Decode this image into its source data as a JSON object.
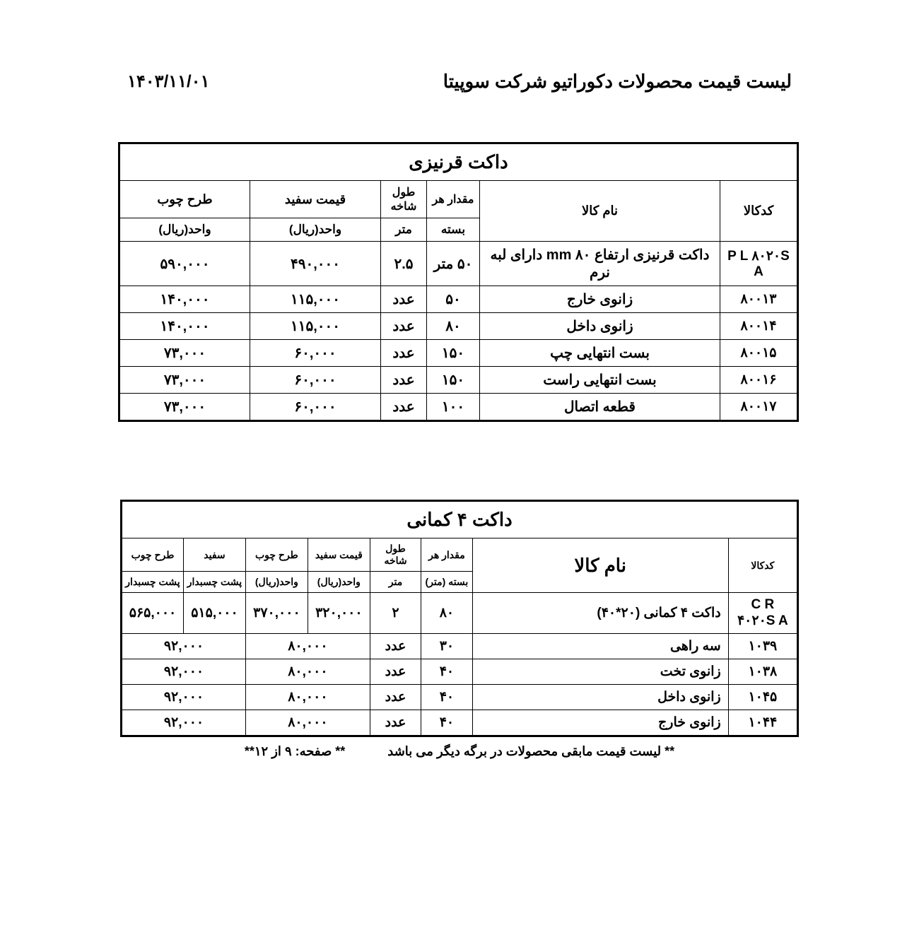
{
  "header": {
    "title": "لیست قیمت محصولات دکوراتیو شرکت سوپیتا",
    "date": "۱۴۰۳/۱۱/۰۱"
  },
  "table1": {
    "category": "داکت قرنیزی",
    "headers": {
      "code": "کدکالا",
      "name": "نام کالا",
      "qty": "مقدار هر",
      "len": "طول شاخه",
      "white": "قیمت  سفید",
      "wood": "طرح چوب",
      "unit_pack": "بسته",
      "unit_m": "متر",
      "unit_rial1": "واحد(ریال)",
      "unit_rial2": "واحد(ریال)"
    },
    "rows": [
      {
        "code": "P L ۸۰۲۰S A",
        "name": "داکت قرنیزی ارتفاع ۸۰ mm دارای لبه نرم",
        "qty": "۵۰  متر",
        "len": "۲.۵",
        "white": "۴۹۰,۰۰۰",
        "wood": "۵۹۰,۰۰۰"
      },
      {
        "code": "۸۰۰۱۳",
        "name": "زانوی خارج",
        "qty": "۵۰",
        "len": "عدد",
        "white": "۱۱۵,۰۰۰",
        "wood": "۱۴۰,۰۰۰"
      },
      {
        "code": "۸۰۰۱۴",
        "name": "زانوی داخل",
        "qty": "۸۰",
        "len": "عدد",
        "white": "۱۱۵,۰۰۰",
        "wood": "۱۴۰,۰۰۰"
      },
      {
        "code": "۸۰۰۱۵",
        "name": "بست انتهایی چپ",
        "qty": "۱۵۰",
        "len": "عدد",
        "white": "۶۰,۰۰۰",
        "wood": "۷۳,۰۰۰"
      },
      {
        "code": "۸۰۰۱۶",
        "name": "بست انتهایی راست",
        "qty": "۱۵۰",
        "len": "عدد",
        "white": "۶۰,۰۰۰",
        "wood": "۷۳,۰۰۰"
      },
      {
        "code": "۸۰۰۱۷",
        "name": "قطعه اتصال",
        "qty": "۱۰۰",
        "len": "عدد",
        "white": "۶۰,۰۰۰",
        "wood": "۷۳,۰۰۰"
      }
    ]
  },
  "table2": {
    "category": "داکت ۴ کمانی",
    "headers": {
      "code": "کدکالا",
      "name": "نام کالا",
      "qty": "مقدار هر",
      "len": "طول شاخه",
      "price_white": "قیمت سفید",
      "wood": "طرح چوب",
      "white": "سفید",
      "wood2": "طرح چوب",
      "unit_pack": "بسته (متر)",
      "unit_m": "متر",
      "unit_rial": "واحد(ریال)",
      "adhesive": "پشت چسبدار"
    },
    "rows": [
      {
        "code": "C R ۴۰۲۰S A",
        "name": "داکت ۴ کمانی  (۲۰*۴۰)",
        "qty": "۸۰",
        "len": "۲",
        "pw": "۳۲۰,۰۰۰",
        "wd": "۳۷۰,۰۰۰",
        "pw_adh": "۵۱۵,۰۰۰",
        "wd_adh": "۵۶۵,۰۰۰"
      },
      {
        "code": "۱۰۳۹",
        "name": "سه راهی",
        "qty": "۳۰",
        "len": "عدد",
        "merged_white": "۸۰,۰۰۰",
        "merged_adh": "۹۲,۰۰۰"
      },
      {
        "code": "۱۰۳۸",
        "name": "زانوی تخت",
        "qty": "۴۰",
        "len": "عدد",
        "merged_white": "۸۰,۰۰۰",
        "merged_adh": "۹۲,۰۰۰"
      },
      {
        "code": "۱۰۴۵",
        "name": "زانوی داخل",
        "qty": "۴۰",
        "len": "عدد",
        "merged_white": "۸۰,۰۰۰",
        "merged_adh": "۹۲,۰۰۰"
      },
      {
        "code": "۱۰۴۴",
        "name": "زانوی خارج",
        "qty": "۴۰",
        "len": "عدد",
        "merged_white": "۸۰,۰۰۰",
        "merged_adh": "۹۲,۰۰۰"
      }
    ]
  },
  "footer": {
    "note": "**     لیست قیمت مابقی محصولات در برگه دیگر می باشد",
    "page": "**    صفحه: ۹ از ۱۲**"
  }
}
